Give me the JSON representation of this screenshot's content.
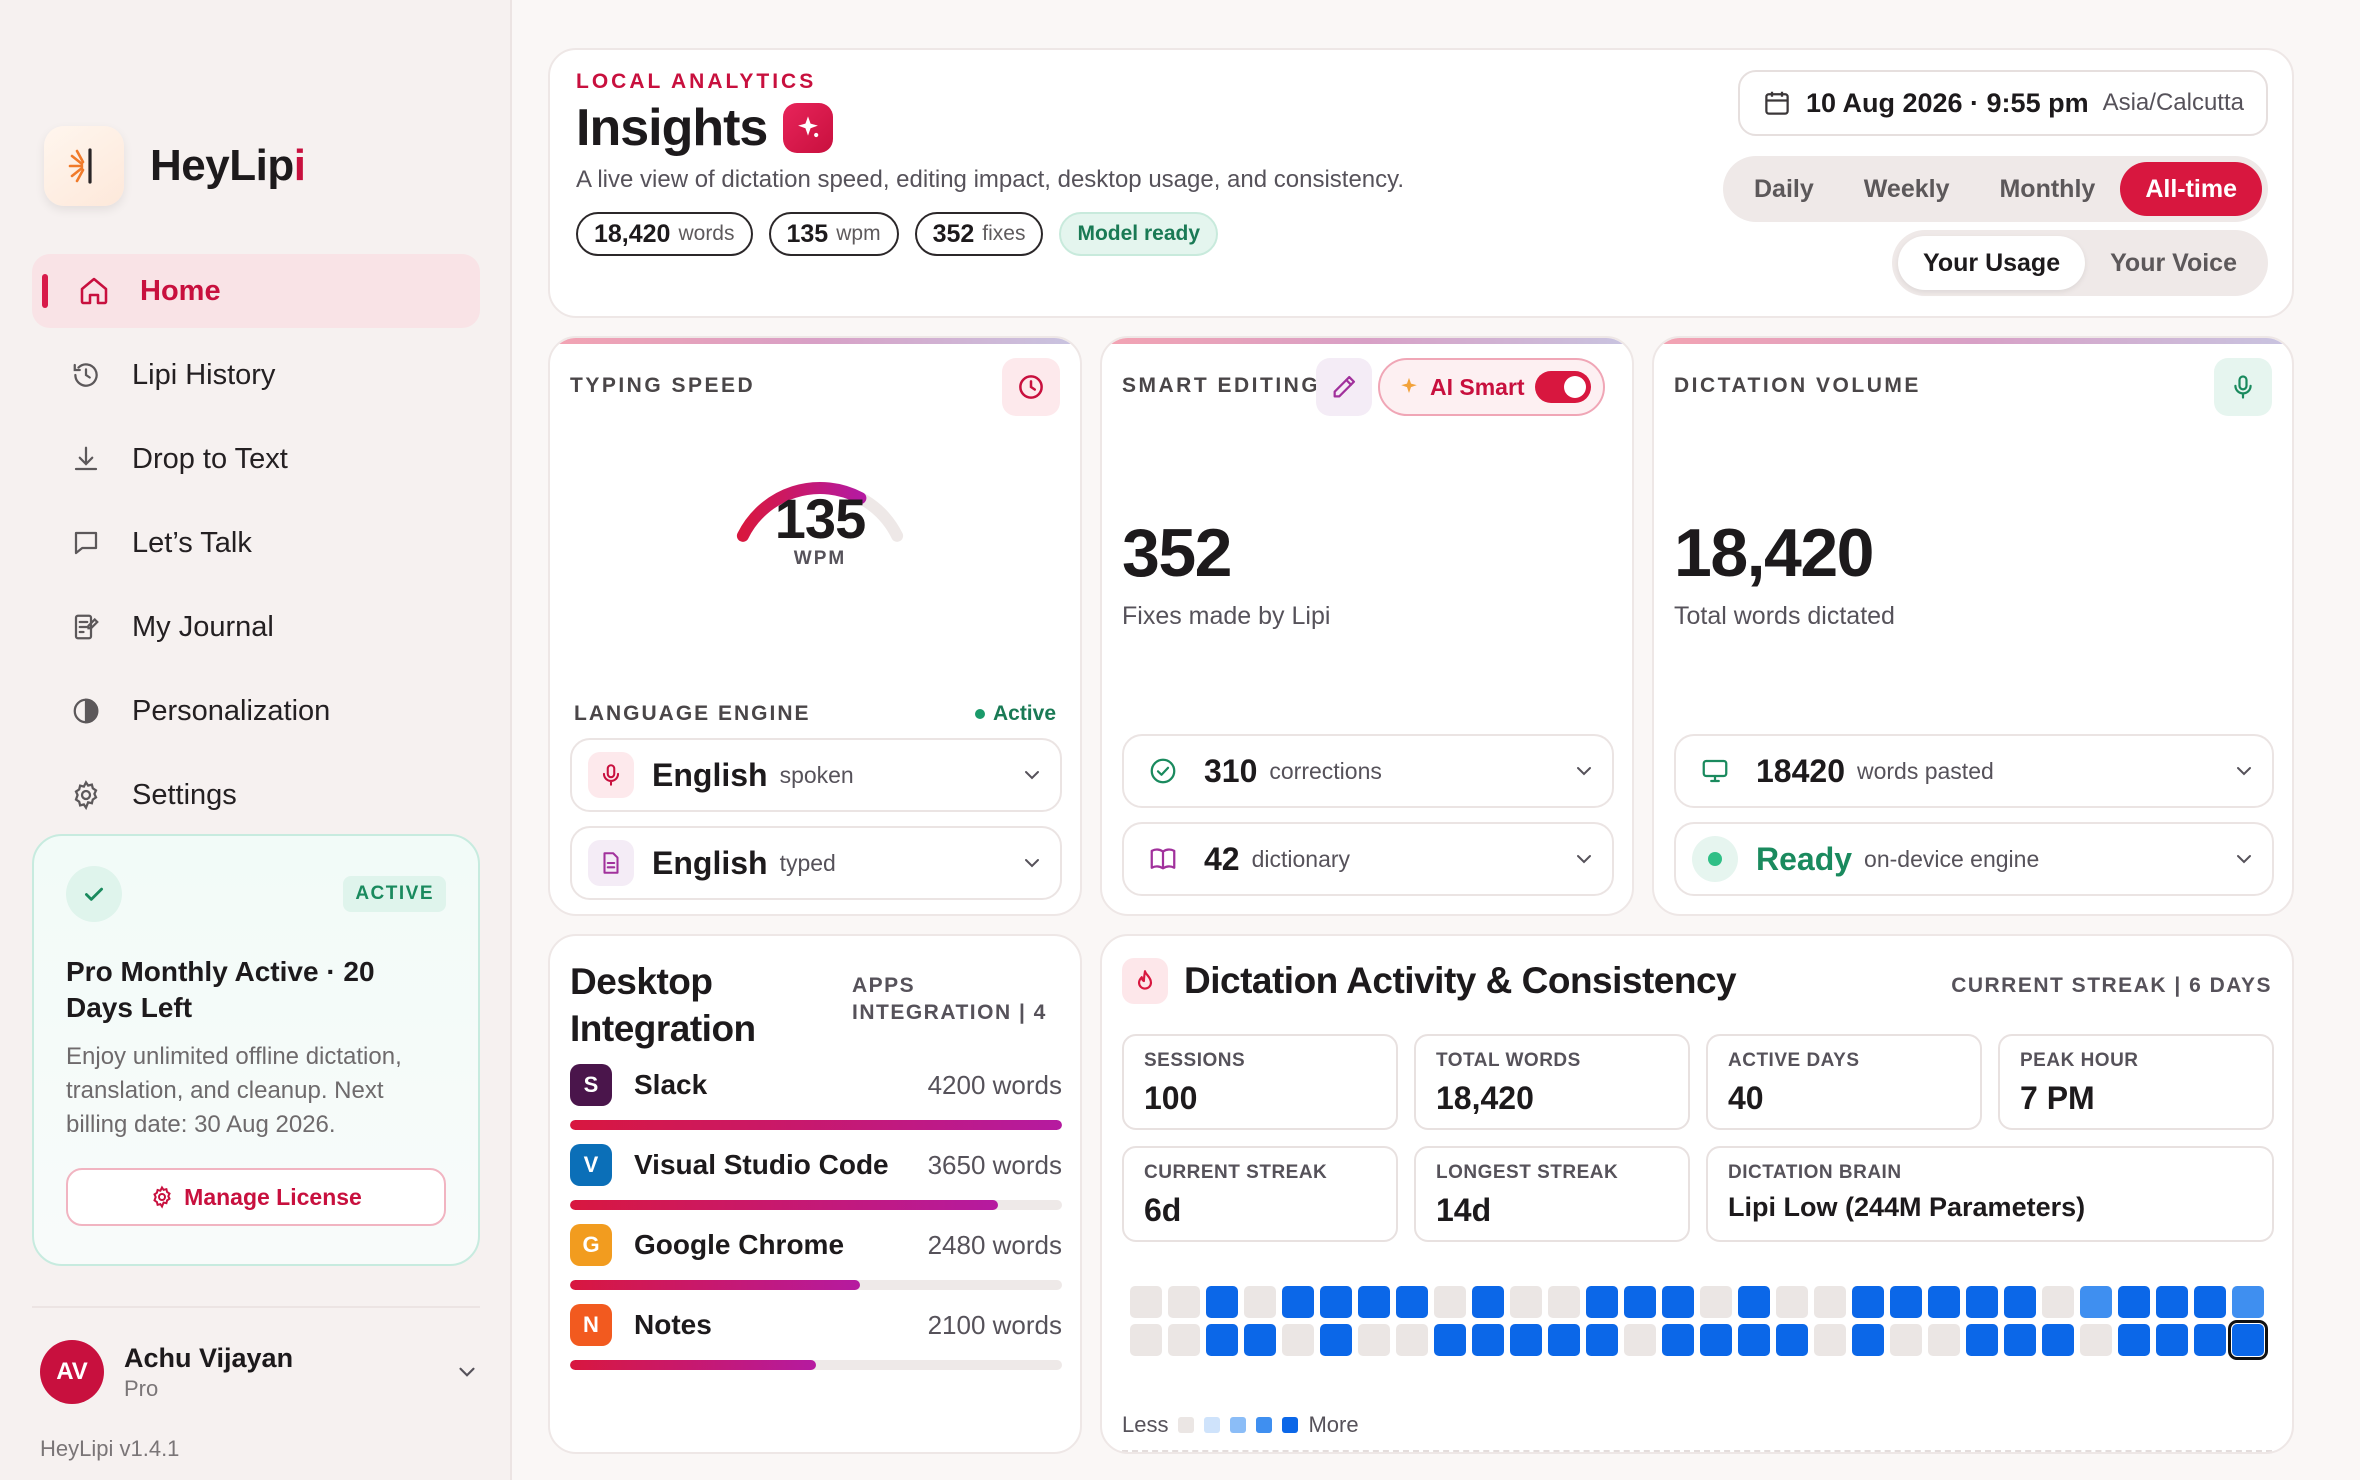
{
  "brand": {
    "name_main": "HeyLip",
    "name_accent": "i"
  },
  "nav": [
    {
      "label": "Home",
      "icon": "home-icon",
      "active": true
    },
    {
      "label": "Lipi History",
      "icon": "history-icon"
    },
    {
      "label": "Drop to Text",
      "icon": "download-icon"
    },
    {
      "label": "Let’s Talk",
      "icon": "chat-icon"
    },
    {
      "label": "My Journal",
      "icon": "journal-icon"
    },
    {
      "label": "Personalization",
      "icon": "palette-icon"
    },
    {
      "label": "Settings",
      "icon": "gear-icon"
    }
  ],
  "plan": {
    "badge": "ACTIVE",
    "title": "Pro Monthly Active · 20 Days Left",
    "description": "Enjoy unlimited offline dictation, translation, and cleanup. Next billing date: 30 Aug 2026.",
    "button": "Manage License"
  },
  "user": {
    "initials": "AV",
    "name": "Achu Vijayan",
    "plan": "Pro"
  },
  "version": "HeyLipi v1.4.1",
  "header": {
    "eyebrow": "LOCAL ANALYTICS",
    "title": "Insights",
    "subtitle": "A live view of dictation speed, editing impact, desktop usage, and consistency.",
    "chips": [
      {
        "value": "18,420",
        "unit": "words"
      },
      {
        "value": "135",
        "unit": "wpm"
      },
      {
        "value": "352",
        "unit": "fixes"
      }
    ],
    "status_chip": "Model ready",
    "date": "10 Aug 2026 · 9:55 pm",
    "timezone": "Asia/Calcutta",
    "periods": [
      "Daily",
      "Weekly",
      "Monthly",
      "All-time"
    ],
    "active_period": "All-time",
    "usage_tabs": [
      "Your Usage",
      "Your Voice"
    ],
    "active_usage_tab": "Your Usage"
  },
  "typing": {
    "label": "TYPING SPEED",
    "value": "135",
    "unit": "WPM",
    "gauge_fraction": 0.72,
    "engine_label": "LANGUAGE ENGINE",
    "engine_status": "Active",
    "rows": [
      {
        "value": "English",
        "sub": "spoken"
      },
      {
        "value": "English",
        "sub": "typed"
      }
    ]
  },
  "editing": {
    "label": "SMART EDITING",
    "toggle_label": "AI Smart",
    "value": "352",
    "sub": "Fixes made by Lipi",
    "rows": [
      {
        "value": "310",
        "sub": "corrections"
      },
      {
        "value": "42",
        "sub": "dictionary"
      }
    ]
  },
  "volume": {
    "label": "DICTATION VOLUME",
    "value": "18,420",
    "sub": "Total words dictated",
    "rows": [
      {
        "value": "18420",
        "sub": "words pasted"
      },
      {
        "value": "Ready",
        "sub": "on-device engine"
      }
    ]
  },
  "desktop": {
    "title": "Desktop Integration",
    "meta_line1": "APPS",
    "meta_line2": "INTEGRATION | 4",
    "apps": [
      {
        "letter": "S",
        "name": "Slack",
        "words": "4200 words",
        "fraction": 1.0,
        "color": "#4a154b"
      },
      {
        "letter": "V",
        "name": "Visual Studio Code",
        "words": "3650 words",
        "fraction": 0.869,
        "color": "#0b6fb8"
      },
      {
        "letter": "G",
        "name": "Google Chrome",
        "words": "2480 words",
        "fraction": 0.59,
        "color": "#f29c1f"
      },
      {
        "letter": "N",
        "name": "Notes",
        "words": "2100 words",
        "fraction": 0.5,
        "color": "#f25a1f"
      }
    ]
  },
  "activity": {
    "title": "Dictation Activity & Consistency",
    "streak_label": "CURRENT STREAK | 6 DAYS",
    "metrics": [
      {
        "label": "SESSIONS",
        "value": "100"
      },
      {
        "label": "TOTAL WORDS",
        "value": "18,420"
      },
      {
        "label": "ACTIVE DAYS",
        "value": "40"
      },
      {
        "label": "PEAK HOUR",
        "value": "7 PM"
      },
      {
        "label": "CURRENT STREAK",
        "value": "6d"
      },
      {
        "label": "LONGEST STREAK",
        "value": "14d"
      },
      {
        "label": "DICTATION BRAIN",
        "value": "Lipi Low (244M Parameters)"
      }
    ],
    "heatmap": [
      [
        0,
        0,
        4,
        0,
        4,
        4,
        4,
        4,
        0,
        4,
        0,
        0,
        4,
        4,
        4,
        0,
        4,
        0,
        0,
        4,
        4,
        4,
        4,
        4,
        0,
        3,
        4,
        4,
        4,
        3
      ],
      [
        0,
        0,
        4,
        4,
        0,
        4,
        0,
        0,
        4,
        4,
        4,
        4,
        4,
        0,
        4,
        4,
        4,
        4,
        0,
        4,
        0,
        0,
        4,
        4,
        4,
        0,
        4,
        4,
        4,
        5
      ]
    ],
    "legend_less": "Less",
    "legend_more": "More"
  }
}
